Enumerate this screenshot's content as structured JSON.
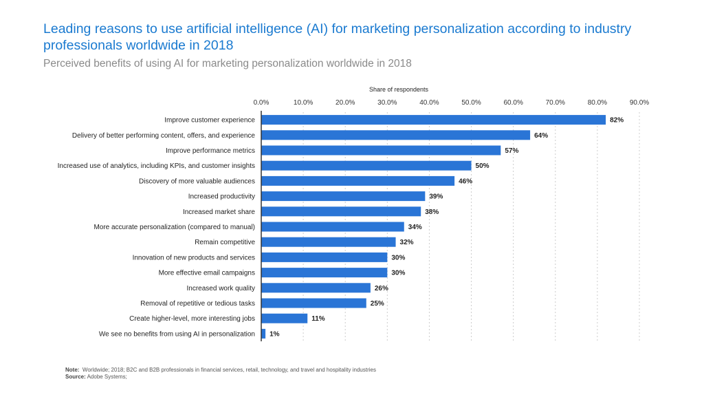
{
  "chart_data": {
    "type": "bar",
    "orientation": "horizontal",
    "title": "Leading reasons to use artificial intelligence (AI) for marketing personalization according to industry professionals worldwide in 2018",
    "subtitle": "Perceived benefits of using AI for marketing personalization worldwide in 2018",
    "xlabel": "Share of respondents",
    "xlim": [
      0,
      90
    ],
    "xticks": [
      "0.0%",
      "10.0%",
      "20.0%",
      "30.0%",
      "40.0%",
      "50.0%",
      "60.0%",
      "70.0%",
      "80.0%",
      "90.0%"
    ],
    "grid": true,
    "bar_color": "#2a75d6",
    "categories": [
      "Improve customer experience",
      "Delivery of better performing content, offers, and experience",
      "Improve performance metrics",
      "Increased use of analytics, including KPIs, and customer insights",
      "Discovery of more valuable audiences",
      "Increased productivity",
      "Increased market share",
      "More accurate personalization (compared to manual)",
      "Remain competitive",
      "Innovation of new products and services",
      "More effective email campaigns",
      "Increased work quality",
      "Removal of repetitive or tedious tasks",
      "Create higher-level, more interesting jobs",
      "We see no benefits from using AI in personalization"
    ],
    "values": [
      82,
      64,
      57,
      50,
      46,
      39,
      38,
      34,
      32,
      30,
      30,
      26,
      25,
      11,
      1
    ],
    "data_labels": [
      "82%",
      "64%",
      "57%",
      "50%",
      "46%",
      "39%",
      "38%",
      "34%",
      "32%",
      "30%",
      "30%",
      "26%",
      "25%",
      "11%",
      "1%"
    ]
  },
  "footer": {
    "note_label": "Note:",
    "note": "Worldwide; 2018; B2C and B2B professionals in financial services, retail, technology, and travel and hospitality industries",
    "source_label": "Source:",
    "source": "Adobe Systems;"
  }
}
